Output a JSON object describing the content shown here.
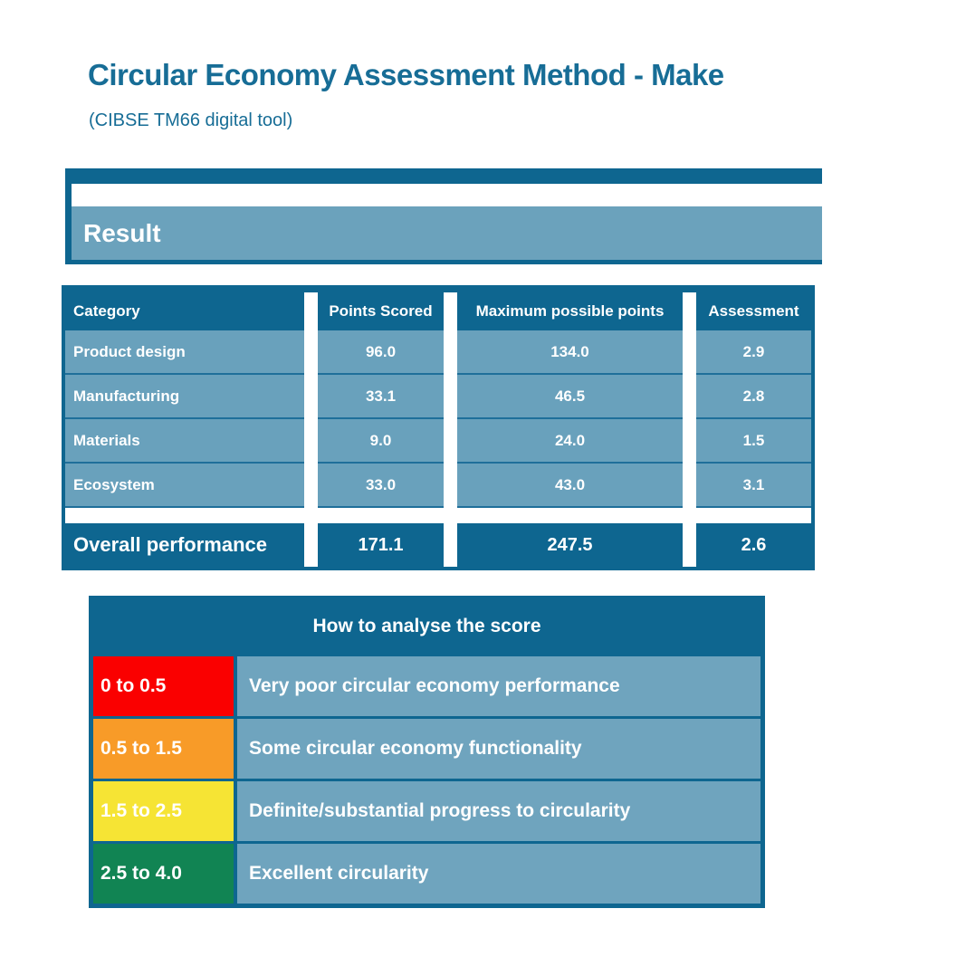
{
  "page": {
    "title": "Circular Economy Assessment Method - Make",
    "subtitle": "(CIBSE TM66 digital tool)"
  },
  "result_banner": {
    "label": "Result"
  },
  "results_table": {
    "columns": {
      "category": "Category",
      "points_scored": "Points Scored",
      "max_points": "Maximum possible points",
      "assessment": "Assessment"
    },
    "rows": [
      {
        "category": "Product design",
        "points_scored": "96.0",
        "max_points": "134.0",
        "assessment": "2.9"
      },
      {
        "category": "Manufacturing",
        "points_scored": "33.1",
        "max_points": "46.5",
        "assessment": "2.8"
      },
      {
        "category": "Materials",
        "points_scored": "9.0",
        "max_points": "24.0",
        "assessment": "1.5"
      },
      {
        "category": "Ecosystem",
        "points_scored": "33.0",
        "max_points": "43.0",
        "assessment": "3.1"
      }
    ],
    "overall": {
      "label": "Overall performance",
      "points_scored": "171.1",
      "max_points": "247.5",
      "assessment": "2.6"
    }
  },
  "score_legend": {
    "title": "How to analyse the score",
    "rows": [
      {
        "range": "0 to 0.5",
        "description": "Very poor circular economy performance",
        "color": "#fa0000"
      },
      {
        "range": "0.5 to 1.5",
        "description": "Some circular economy functionality",
        "color": "#f89b28"
      },
      {
        "range": "1.5 to 2.5",
        "description": "Definite/substantial progress to circularity",
        "color": "#f6e434"
      },
      {
        "range": "2.5 to 4.0",
        "description": "Excellent circularity",
        "color": "#118453"
      }
    ]
  },
  "colors": {
    "dark_teal": "#0e6690",
    "cell_blue": "#69a1bc",
    "legend_blue": "#6fa4be",
    "row_line": "#1f6f9a",
    "title_teal": "#176d96",
    "text_white": "#ffffff"
  }
}
